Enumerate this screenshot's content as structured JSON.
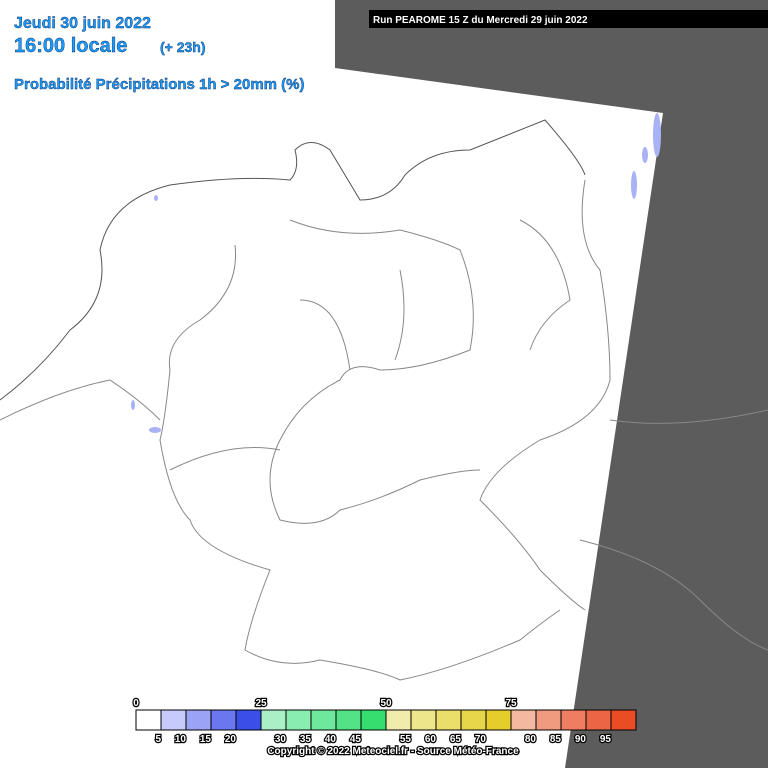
{
  "header": {
    "date": "Jeudi 30 juin 2022",
    "time": "16:00 locale",
    "lead": "(+ 23h)",
    "run": "Run PEAROME 15 Z du Mercredi 29 juin 2022",
    "parameter": "Probabilité Précipitations 1h > 20mm (%)"
  },
  "legend": {
    "ticks": [
      0,
      5,
      10,
      15,
      20,
      25,
      30,
      35,
      40,
      45,
      50,
      55,
      60,
      65,
      70,
      75,
      80,
      85,
      90,
      95
    ],
    "colors": [
      "#ffffff",
      "#c6cbfb",
      "#9aa3f5",
      "#6a77ef",
      "#3b4fe8",
      "#a9f0c7",
      "#8aedb0",
      "#6ee89c",
      "#53e386",
      "#36de6f",
      "#f1ecab",
      "#eee68a",
      "#ebde6a",
      "#e8d64a",
      "#e5cd2b",
      "#f2b8a0",
      "#f09a80",
      "#ee7e61",
      "#ec6645",
      "#ea4c24"
    ]
  },
  "footer": {
    "copyright": "Copyright © 2022 Meteociel.fr - Source Météo-France"
  }
}
